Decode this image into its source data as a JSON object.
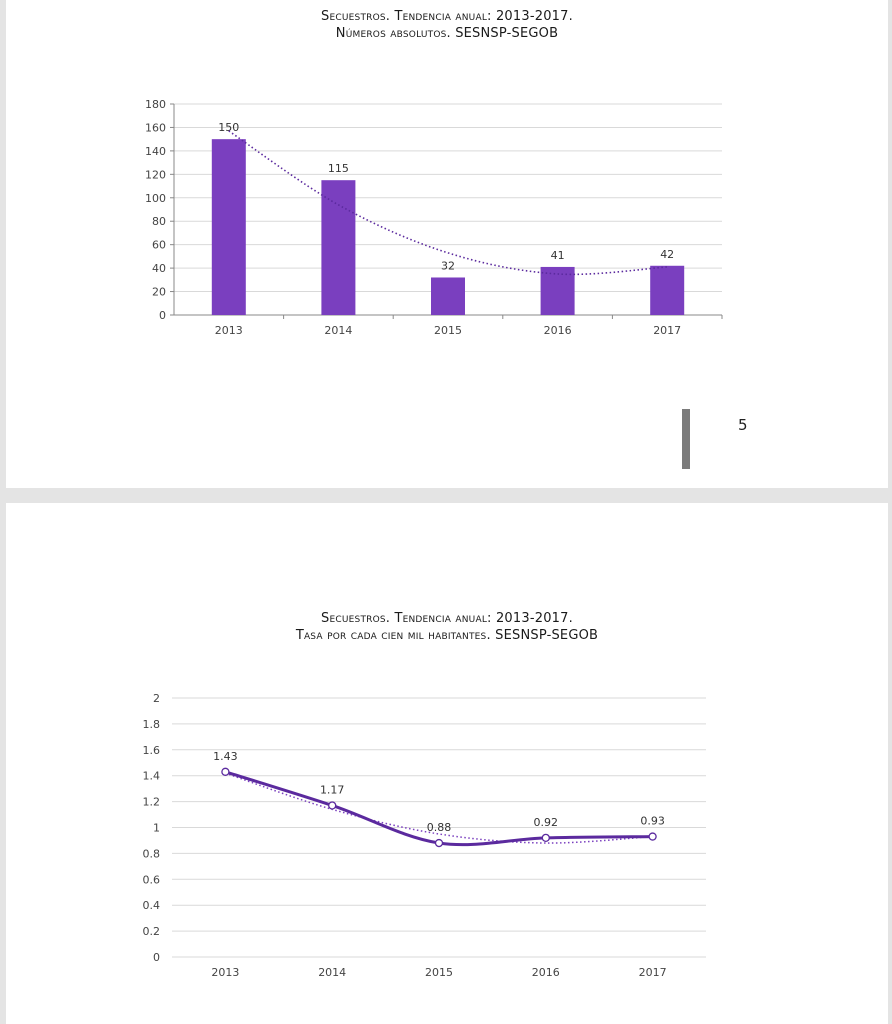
{
  "page": {
    "number": "5"
  },
  "chart_data": [
    {
      "type": "bar",
      "title_line1": "Secuestros. Tendencia anual: 2013-2017.",
      "title_line2": "Números absolutos. SESNSP-SEGOB",
      "categories": [
        "2013",
        "2014",
        "2015",
        "2016",
        "2017"
      ],
      "values": [
        150,
        115,
        32,
        41,
        42
      ],
      "data_labels": [
        "150",
        "115",
        "32",
        "41",
        "42"
      ],
      "ylim": [
        0,
        180
      ],
      "yticks": [
        0,
        20,
        40,
        60,
        80,
        100,
        120,
        140,
        160,
        180
      ],
      "ytick_labels": [
        "0",
        "20",
        "40",
        "60",
        "80",
        "100",
        "120",
        "140",
        "160",
        "180"
      ],
      "trendline": {
        "type": "polynomial",
        "style": "dotted",
        "values": [
          157,
          94,
          53,
          35,
          41
        ]
      },
      "grid": true,
      "legend": "none",
      "colors": {
        "bar": "#7a3fbf",
        "trend": "#5b2a9e",
        "grid": "#d9d9d9"
      }
    },
    {
      "type": "line",
      "title_line1": "Secuestros. Tendencia anual: 2013-2017.",
      "title_line2": "Tasa por cada cien mil habitantes. SESNSP-SEGOB",
      "categories": [
        "2013",
        "2014",
        "2015",
        "2016",
        "2017"
      ],
      "values": [
        1.43,
        1.17,
        0.88,
        0.92,
        0.93
      ],
      "data_labels": [
        "1.43",
        "1.17",
        "0.88",
        "0.92",
        "0.93"
      ],
      "ylim": [
        0,
        2
      ],
      "yticks": [
        0,
        0.2,
        0.4,
        0.6,
        0.8,
        1,
        1.2,
        1.4,
        1.6,
        1.8,
        2
      ],
      "ytick_labels": [
        "0",
        "0.2",
        "0.4",
        "0.6",
        "0.8",
        "1",
        "1.2",
        "1.4",
        "1.6",
        "1.8",
        "2"
      ],
      "trendline": {
        "type": "polynomial",
        "style": "dotted",
        "values": [
          1.42,
          1.14,
          0.95,
          0.88,
          0.93
        ]
      },
      "grid": true,
      "legend": "none",
      "colors": {
        "line": "#5b2a9e",
        "marker_fill": "#ffffff",
        "trend": "#7a3fbf",
        "grid": "#d9d9d9"
      }
    }
  ]
}
